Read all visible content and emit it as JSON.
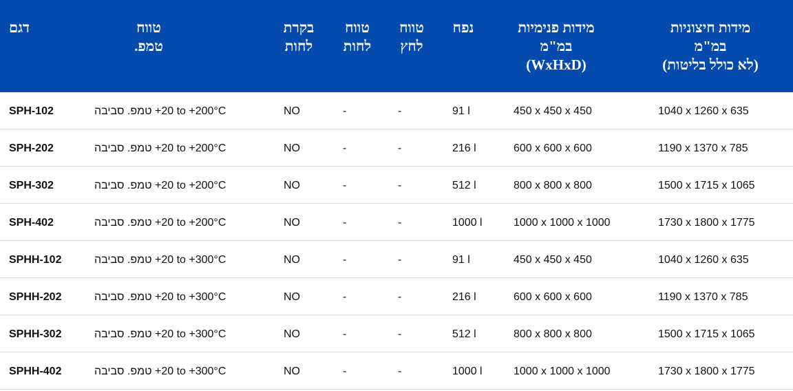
{
  "colors": {
    "header_bg": "#054aad",
    "header_text": "#ffffff",
    "divider": "#dcdcdc"
  },
  "headers": {
    "model": [
      "דגם"
    ],
    "temp_range": [
      "טווח",
      "טמפ."
    ],
    "humidity_control": [
      "בקרת",
      "לחות"
    ],
    "humidity_range": [
      "טווח",
      "לחות"
    ],
    "pressure_range": [
      "טווח",
      "לחץ"
    ],
    "volume": [
      "נפח"
    ],
    "inner_dims": [
      "מידות פנימיות",
      "במ\"מ",
      "(WxHxD)"
    ],
    "outer_dims": [
      "מידות חיצוניות",
      "במ\"מ",
      "(לא כולל בליטות)"
    ]
  },
  "rows": [
    {
      "model": "SPH-102",
      "temp_prefix": "טמפ. סביבה",
      "temp_range": "+20 to +200°C",
      "humidity_control": "NO",
      "humidity_range": "-",
      "pressure_range": "-",
      "volume": "91 l",
      "inner": "450 x 450 x 450",
      "outer": "1040 x 1260 x 635"
    },
    {
      "model": "SPH-202",
      "temp_prefix": "טמפ. סביבה",
      "temp_range": "+20 to +200°C",
      "humidity_control": "NO",
      "humidity_range": "-",
      "pressure_range": "-",
      "volume": "216 l",
      "inner": "600 x 600 x 600",
      "outer": "1190 x 1370 x 785"
    },
    {
      "model": "SPH-302",
      "temp_prefix": "טמפ. סביבה",
      "temp_range": "+20 to +200°C",
      "humidity_control": "NO",
      "humidity_range": "-",
      "pressure_range": "-",
      "volume": "512 l",
      "inner": "800 x 800 x 800",
      "outer": "1500 x 1715 x 1065"
    },
    {
      "model": "SPH-402",
      "temp_prefix": "טמפ. סביבה",
      "temp_range": "+20 to +200°C",
      "humidity_control": "NO",
      "humidity_range": "-",
      "pressure_range": "-",
      "volume": "1000 l",
      "inner": "1000 x 1000 x 1000",
      "outer": "1730 x 1800 x 1775"
    },
    {
      "model": "SPHH-102",
      "temp_prefix": "טמפ. סביבה",
      "temp_range": "+20 to +300°C",
      "humidity_control": "NO",
      "humidity_range": "-",
      "pressure_range": "-",
      "volume": "91 l",
      "inner": "450 x 450 x 450",
      "outer": "1040 x 1260 x 635"
    },
    {
      "model": "SPHH-202",
      "temp_prefix": "טמפ. סביבה",
      "temp_range": "+20 to +300°C",
      "humidity_control": "NO",
      "humidity_range": "-",
      "pressure_range": "-",
      "volume": "216 l",
      "inner": "600 x 600 x 600",
      "outer": "1190 x 1370 x 785"
    },
    {
      "model": "SPHH-302",
      "temp_prefix": "טמפ. סביבה",
      "temp_range": "+20 to +300°C",
      "humidity_control": "NO",
      "humidity_range": "-",
      "pressure_range": "-",
      "volume": "512 l",
      "inner": "800 x 800 x 800",
      "outer": "1500 x 1715 x 1065"
    },
    {
      "model": "SPHH-402",
      "temp_prefix": "טמפ. סביבה",
      "temp_range": "+20 to +300°C",
      "humidity_control": "NO",
      "humidity_range": "-",
      "pressure_range": "-",
      "volume": "1000 l",
      "inner": "1000 x 1000 x 1000",
      "outer": "1730 x 1800 x 1775"
    }
  ]
}
